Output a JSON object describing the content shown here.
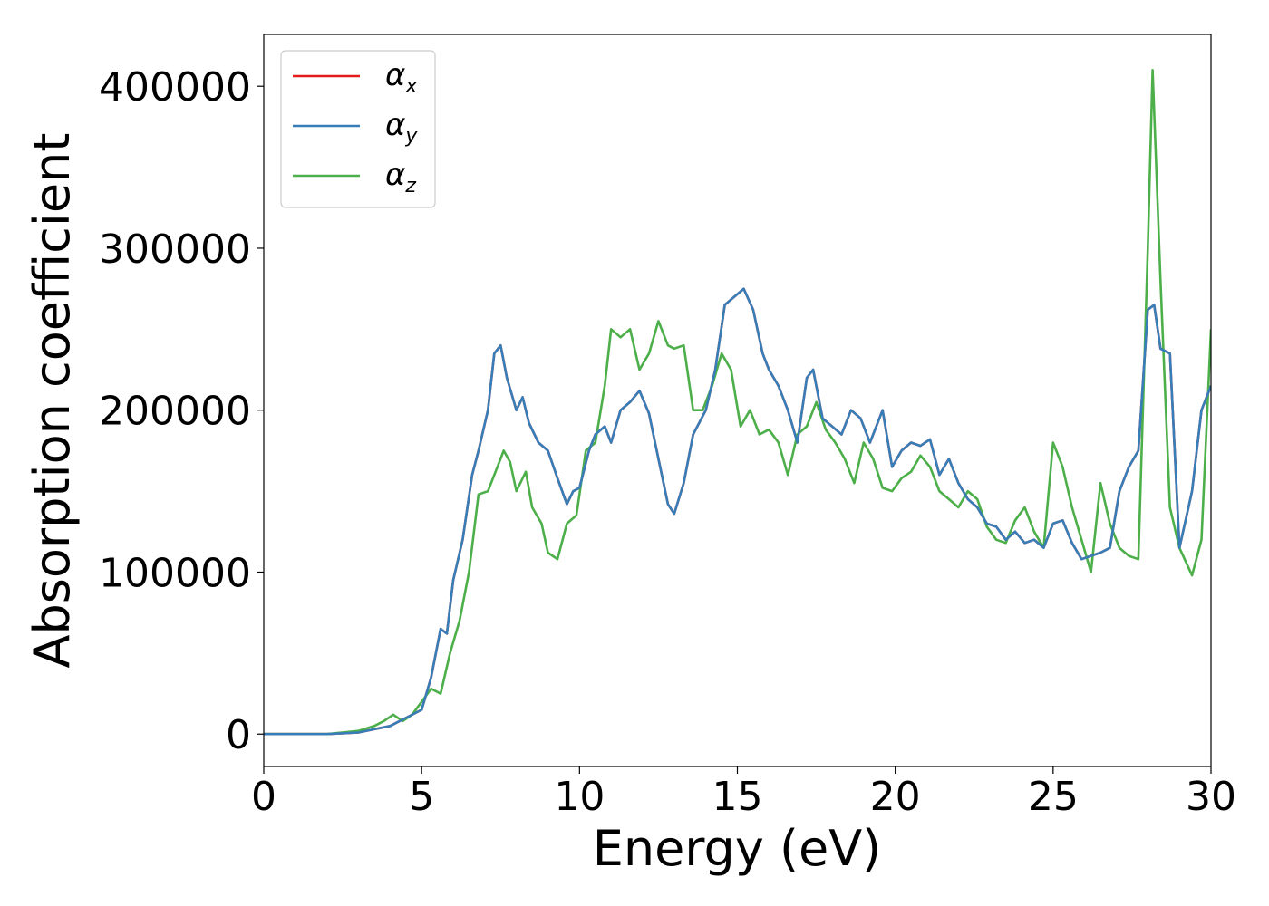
{
  "chart_data": {
    "type": "line",
    "title": "",
    "xlabel": "Energy (eV)",
    "ylabel": "Absorption coefficient",
    "xlim": [
      0,
      30
    ],
    "ylim": [
      -20000,
      432000
    ],
    "grid": false,
    "legend_position": "top-left",
    "x_ticks": [
      0,
      5,
      10,
      15,
      20,
      25,
      30
    ],
    "x_tick_labels": [
      "0",
      "5",
      "10",
      "15",
      "20",
      "25",
      "30"
    ],
    "y_ticks": [
      0,
      100000,
      200000,
      300000,
      400000
    ],
    "y_tick_labels": [
      "0",
      "100000",
      "200000",
      "300000",
      "400000"
    ],
    "series": [
      {
        "name": "αx",
        "label_base": "α",
        "label_sub": "x",
        "color": "#e41a1c",
        "x": [
          0,
          1,
          2,
          3,
          3.5,
          4,
          4.5,
          5,
          5.3,
          5.6,
          5.8,
          6,
          6.3,
          6.6,
          6.8,
          7.1,
          7.3,
          7.5,
          7.7,
          8,
          8.2,
          8.4,
          8.7,
          9,
          9.3,
          9.6,
          9.8,
          10,
          10.3,
          10.5,
          10.8,
          11,
          11.3,
          11.6,
          11.9,
          12.2,
          12.5,
          12.8,
          13,
          13.3,
          13.6,
          14,
          14.3,
          14.6,
          14.9,
          15.2,
          15.5,
          15.8,
          16,
          16.3,
          16.6,
          16.9,
          17.2,
          17.4,
          17.7,
          18,
          18.3,
          18.6,
          18.9,
          19.2,
          19.6,
          19.9,
          20.2,
          20.5,
          20.8,
          21.1,
          21.4,
          21.7,
          22,
          22.3,
          22.6,
          22.9,
          23.2,
          23.5,
          23.8,
          24.1,
          24.4,
          24.7,
          25,
          25.3,
          25.6,
          25.9,
          26.2,
          26.5,
          26.8,
          27.1,
          27.4,
          27.7,
          28,
          28.2,
          28.4,
          28.7,
          29,
          29.4,
          29.7,
          30
        ],
        "y": [
          0,
          0,
          0,
          1000,
          3000,
          5000,
          10000,
          15000,
          35000,
          65000,
          62000,
          95000,
          120000,
          160000,
          175000,
          200000,
          235000,
          240000,
          220000,
          200000,
          208000,
          192000,
          180000,
          175000,
          158000,
          142000,
          150000,
          152000,
          175000,
          185000,
          190000,
          180000,
          200000,
          205000,
          212000,
          198000,
          170000,
          142000,
          136000,
          155000,
          185000,
          200000,
          225000,
          265000,
          270000,
          275000,
          262000,
          235000,
          225000,
          215000,
          200000,
          180000,
          220000,
          225000,
          195000,
          190000,
          185000,
          200000,
          195000,
          180000,
          200000,
          165000,
          175000,
          180000,
          178000,
          182000,
          160000,
          170000,
          155000,
          145000,
          140000,
          130000,
          128000,
          120000,
          125000,
          118000,
          120000,
          115000,
          130000,
          132000,
          118000,
          108000,
          110000,
          112000,
          115000,
          150000,
          165000,
          175000,
          262000,
          265000,
          238000,
          235000,
          115000,
          150000,
          200000,
          215000
        ]
      },
      {
        "name": "αy",
        "label_base": "α",
        "label_sub": "y",
        "color": "#377eb8",
        "x": [
          0,
          1,
          2,
          3,
          3.5,
          4,
          4.5,
          5,
          5.3,
          5.6,
          5.8,
          6,
          6.3,
          6.6,
          6.8,
          7.1,
          7.3,
          7.5,
          7.7,
          8,
          8.2,
          8.4,
          8.7,
          9,
          9.3,
          9.6,
          9.8,
          10,
          10.3,
          10.5,
          10.8,
          11,
          11.3,
          11.6,
          11.9,
          12.2,
          12.5,
          12.8,
          13,
          13.3,
          13.6,
          14,
          14.3,
          14.6,
          14.9,
          15.2,
          15.5,
          15.8,
          16,
          16.3,
          16.6,
          16.9,
          17.2,
          17.4,
          17.7,
          18,
          18.3,
          18.6,
          18.9,
          19.2,
          19.6,
          19.9,
          20.2,
          20.5,
          20.8,
          21.1,
          21.4,
          21.7,
          22,
          22.3,
          22.6,
          22.9,
          23.2,
          23.5,
          23.8,
          24.1,
          24.4,
          24.7,
          25,
          25.3,
          25.6,
          25.9,
          26.2,
          26.5,
          26.8,
          27.1,
          27.4,
          27.7,
          28,
          28.2,
          28.4,
          28.7,
          29,
          29.4,
          29.7,
          30
        ],
        "y": [
          0,
          0,
          0,
          1000,
          3000,
          5000,
          10000,
          15000,
          35000,
          65000,
          62000,
          95000,
          120000,
          160000,
          175000,
          200000,
          235000,
          240000,
          220000,
          200000,
          208000,
          192000,
          180000,
          175000,
          158000,
          142000,
          150000,
          152000,
          175000,
          185000,
          190000,
          180000,
          200000,
          205000,
          212000,
          198000,
          170000,
          142000,
          136000,
          155000,
          185000,
          200000,
          225000,
          265000,
          270000,
          275000,
          262000,
          235000,
          225000,
          215000,
          200000,
          180000,
          220000,
          225000,
          195000,
          190000,
          185000,
          200000,
          195000,
          180000,
          200000,
          165000,
          175000,
          180000,
          178000,
          182000,
          160000,
          170000,
          155000,
          145000,
          140000,
          130000,
          128000,
          120000,
          125000,
          118000,
          120000,
          115000,
          130000,
          132000,
          118000,
          108000,
          110000,
          112000,
          115000,
          150000,
          165000,
          175000,
          262000,
          265000,
          238000,
          235000,
          115000,
          150000,
          200000,
          215000
        ]
      },
      {
        "name": "αz",
        "label_base": "α",
        "label_sub": "z",
        "color": "#4daf4a",
        "x": [
          0,
          1,
          2,
          3,
          3.5,
          3.8,
          4.1,
          4.4,
          4.7,
          5,
          5.3,
          5.6,
          5.9,
          6.2,
          6.5,
          6.8,
          7.1,
          7.4,
          7.6,
          7.8,
          8,
          8.3,
          8.5,
          8.8,
          9,
          9.3,
          9.6,
          9.9,
          10.2,
          10.5,
          10.8,
          11,
          11.3,
          11.6,
          11.9,
          12.2,
          12.5,
          12.8,
          13,
          13.3,
          13.6,
          13.9,
          14.2,
          14.5,
          14.8,
          15.1,
          15.4,
          15.7,
          16,
          16.3,
          16.6,
          16.9,
          17.2,
          17.5,
          17.8,
          18.1,
          18.4,
          18.7,
          19,
          19.3,
          19.6,
          19.9,
          20.2,
          20.5,
          20.8,
          21.1,
          21.4,
          21.7,
          22,
          22.3,
          22.6,
          22.9,
          23.2,
          23.5,
          23.8,
          24.1,
          24.4,
          24.7,
          25,
          25.3,
          25.6,
          25.9,
          26.2,
          26.5,
          26.8,
          27.1,
          27.4,
          27.7,
          28,
          28.15,
          28.4,
          28.7,
          29,
          29.4,
          29.7,
          30
        ],
        "y": [
          0,
          0,
          0,
          2000,
          5000,
          8000,
          12000,
          8000,
          12000,
          20000,
          28000,
          25000,
          50000,
          70000,
          100000,
          148000,
          150000,
          165000,
          175000,
          168000,
          150000,
          162000,
          140000,
          130000,
          112000,
          108000,
          130000,
          135000,
          175000,
          180000,
          215000,
          250000,
          245000,
          250000,
          225000,
          235000,
          255000,
          240000,
          238000,
          240000,
          200000,
          200000,
          215000,
          235000,
          225000,
          190000,
          200000,
          185000,
          188000,
          180000,
          160000,
          185000,
          190000,
          205000,
          188000,
          180000,
          170000,
          155000,
          180000,
          170000,
          152000,
          150000,
          158000,
          162000,
          172000,
          165000,
          150000,
          145000,
          140000,
          150000,
          145000,
          128000,
          120000,
          118000,
          132000,
          140000,
          125000,
          115000,
          180000,
          165000,
          140000,
          120000,
          100000,
          155000,
          130000,
          115000,
          110000,
          108000,
          300000,
          410000,
          280000,
          140000,
          115000,
          98000,
          120000,
          250000
        ]
      }
    ]
  }
}
